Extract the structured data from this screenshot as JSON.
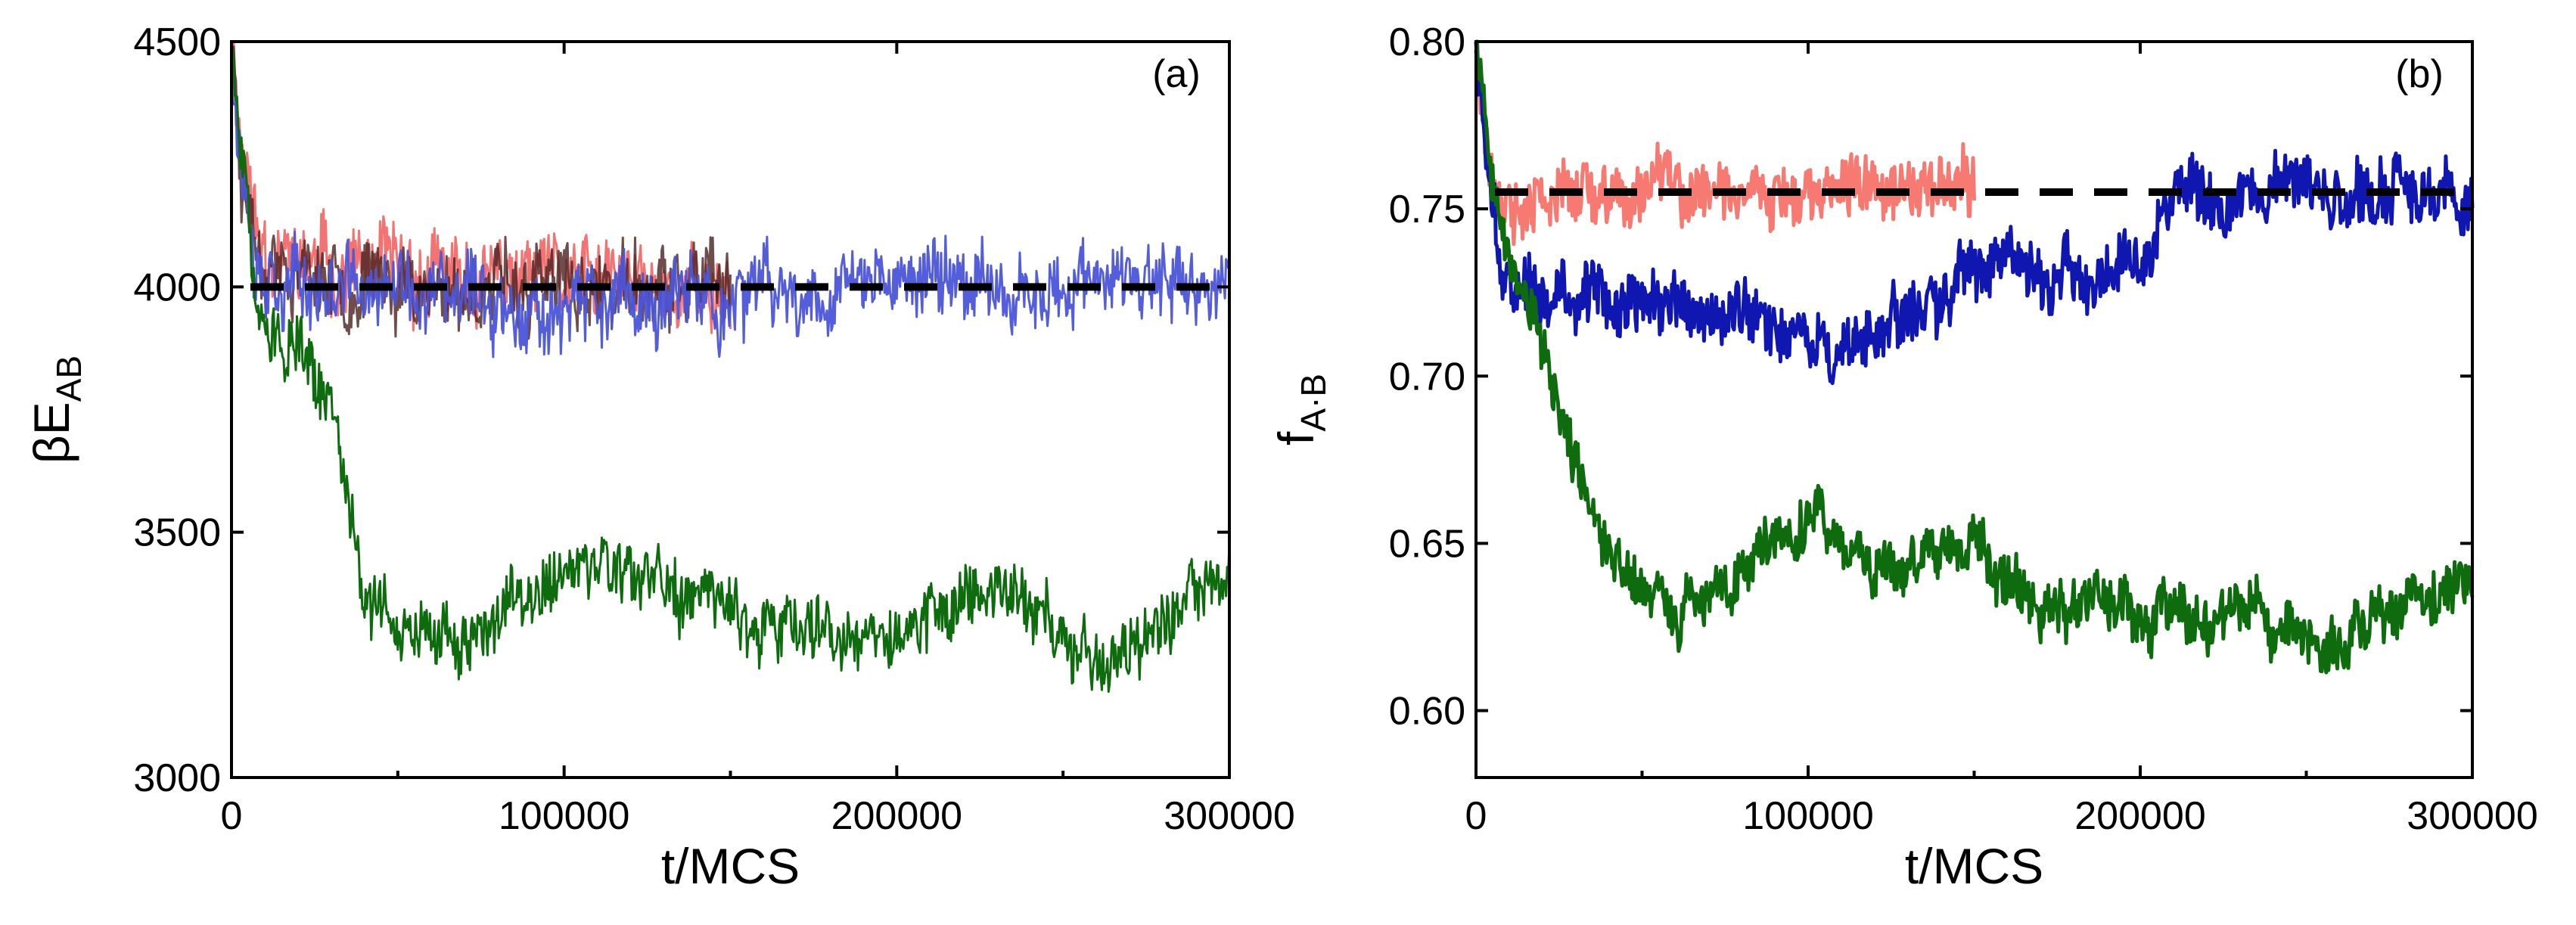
{
  "figure": {
    "count": 2
  },
  "chart_data": [
    {
      "type": "line",
      "panel_label": "(a)",
      "ylabel_main": "βE",
      "ylabel_sub": "AB",
      "xlabel": "t/MCS",
      "xlim": [
        0,
        300000
      ],
      "ylim": [
        3000,
        4500
      ],
      "xticks": [
        0,
        100000,
        200000,
        300000
      ],
      "xtick_labels": [
        "0",
        "100000",
        "200000",
        "300000"
      ],
      "yticks": [
        3000,
        3500,
        4000,
        4500
      ],
      "ytick_labels": [
        "3000",
        "3500",
        "4000",
        "4500"
      ],
      "reference_line": {
        "y": 4000,
        "style": "dashed",
        "color": "#000000"
      },
      "series": [
        {
          "name": "red",
          "color": "#f26a6a",
          "opacity": 0.95,
          "stroke_width": 3,
          "x_end": 150000,
          "anchors": [
            [
              0,
              4500
            ],
            [
              3000,
              4300
            ],
            [
              8000,
              4100
            ],
            [
              20000,
              4050
            ],
            [
              60000,
              4010
            ],
            [
              150000,
              4000
            ]
          ],
          "noise": 85,
          "seed": 11
        },
        {
          "name": "dark-brown",
          "color": "#4a2020",
          "opacity": 0.8,
          "stroke_width": 3,
          "x_end": 150000,
          "anchors": [
            [
              0,
              4500
            ],
            [
              3000,
              4250
            ],
            [
              8000,
              4080
            ],
            [
              20000,
              4030
            ],
            [
              60000,
              4000
            ],
            [
              150000,
              3990
            ]
          ],
          "noise": 80,
          "seed": 23
        },
        {
          "name": "blue",
          "color": "#4c55d8",
          "opacity": 0.95,
          "stroke_width": 3,
          "x_end": 300000,
          "anchors": [
            [
              0,
              4500
            ],
            [
              3000,
              4250
            ],
            [
              8000,
              4050
            ],
            [
              20000,
              4000
            ],
            [
              100000,
              3960
            ],
            [
              150000,
              3970
            ],
            [
              200000,
              4020
            ],
            [
              300000,
              3990
            ]
          ],
          "noise": 80,
          "seed": 37
        },
        {
          "name": "green",
          "color": "#0e6b0e",
          "opacity": 1,
          "stroke_width": 3,
          "x_end": 300000,
          "anchors": [
            [
              0,
              4500
            ],
            [
              3000,
              4250
            ],
            [
              8000,
              3950
            ],
            [
              20000,
              3850
            ],
            [
              30000,
              3750
            ],
            [
              40000,
              3400
            ],
            [
              50000,
              3300
            ],
            [
              70000,
              3280
            ],
            [
              100000,
              3420
            ],
            [
              130000,
              3380
            ],
            [
              170000,
              3310
            ],
            [
              200000,
              3290
            ],
            [
              230000,
              3400
            ],
            [
              260000,
              3230
            ],
            [
              280000,
              3320
            ],
            [
              300000,
              3400
            ]
          ],
          "noise": 70,
          "seed": 51
        }
      ]
    },
    {
      "type": "line",
      "panel_label": "(b)",
      "ylabel_main": "f",
      "ylabel_sub": "A·B",
      "xlabel": "t/MCS",
      "xlim": [
        0,
        300000
      ],
      "ylim": [
        0.58,
        0.8
      ],
      "xticks": [
        0,
        100000,
        200000,
        300000
      ],
      "xtick_labels": [
        "0",
        "100000",
        "200000",
        "300000"
      ],
      "yticks": [
        0.6,
        0.65,
        0.7,
        0.75,
        0.8
      ],
      "ytick_labels": [
        "0.60",
        "0.65",
        "0.70",
        "0.75",
        "0.80"
      ],
      "reference_line": {
        "y": 0.755,
        "style": "dashed",
        "color": "#000000"
      },
      "series": [
        {
          "name": "salmon",
          "color": "#f77a72",
          "opacity": 1,
          "stroke_width": 5,
          "x_end": 150000,
          "anchors": [
            [
              0,
              0.8
            ],
            [
              3000,
              0.77
            ],
            [
              8000,
              0.745
            ],
            [
              20000,
              0.752
            ],
            [
              60000,
              0.755
            ],
            [
              150000,
              0.756
            ]
          ],
          "noise": 0.01,
          "seed": 61
        },
        {
          "name": "blue",
          "color": "#1016b0",
          "opacity": 1,
          "stroke_width": 5,
          "x_end": 300000,
          "anchors": [
            [
              0,
              0.8
            ],
            [
              3000,
              0.76
            ],
            [
              8000,
              0.73
            ],
            [
              30000,
              0.722
            ],
            [
              70000,
              0.72
            ],
            [
              110000,
              0.708
            ],
            [
              140000,
              0.725
            ],
            [
              160000,
              0.738
            ],
            [
              180000,
              0.728
            ],
            [
              200000,
              0.735
            ],
            [
              210000,
              0.752
            ],
            [
              240000,
              0.758
            ],
            [
              270000,
              0.752
            ],
            [
              300000,
              0.756
            ]
          ],
          "noise": 0.01,
          "seed": 73
        },
        {
          "name": "green",
          "color": "#0e6b0e",
          "opacity": 1,
          "stroke_width": 5,
          "x_end": 300000,
          "anchors": [
            [
              0,
              0.8
            ],
            [
              4000,
              0.765
            ],
            [
              10000,
              0.735
            ],
            [
              20000,
              0.71
            ],
            [
              30000,
              0.675
            ],
            [
              40000,
              0.645
            ],
            [
              60000,
              0.63
            ],
            [
              80000,
              0.64
            ],
            [
              100000,
              0.66
            ],
            [
              120000,
              0.64
            ],
            [
              150000,
              0.65
            ],
            [
              170000,
              0.632
            ],
            [
              200000,
              0.628
            ],
            [
              230000,
              0.632
            ],
            [
              260000,
              0.618
            ],
            [
              280000,
              0.63
            ],
            [
              300000,
              0.636
            ]
          ],
          "noise": 0.009,
          "seed": 89
        }
      ]
    }
  ]
}
